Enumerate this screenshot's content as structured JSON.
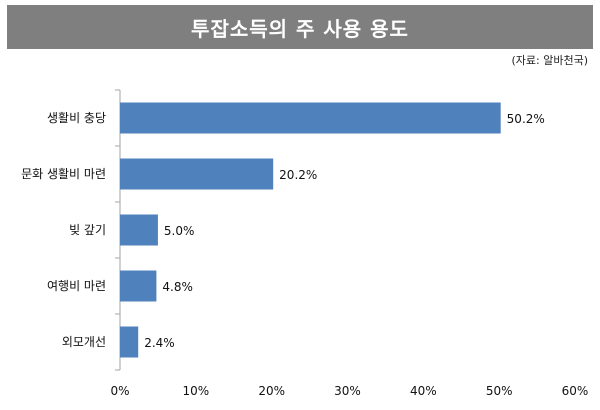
{
  "header": {
    "title": "투잡소득의 주 사용 용도",
    "source": "(자료: 알바천국)"
  },
  "colors": {
    "title_bg": "#7f7f7f",
    "bar": "#4f81bd",
    "axis": "#a6a6a6"
  },
  "chart_data": {
    "type": "bar",
    "orientation": "horizontal",
    "title": "투잡소득의 주 사용 용도",
    "categories": [
      "생활비 충당",
      "문화 생활비 마련",
      "빚 갚기",
      "여행비 마련",
      "외모개선"
    ],
    "values": [
      50.2,
      20.2,
      5.0,
      4.8,
      2.4
    ],
    "value_labels": [
      "50.2%",
      "20.2%",
      "5.0%",
      "4.8%",
      "2.4%"
    ],
    "xlim": [
      0,
      60
    ],
    "xticks": [
      "0%",
      "10%",
      "20%",
      "30%",
      "40%",
      "50%",
      "60%"
    ],
    "xlabel": "",
    "ylabel": "",
    "grid": false,
    "legend": "none"
  }
}
